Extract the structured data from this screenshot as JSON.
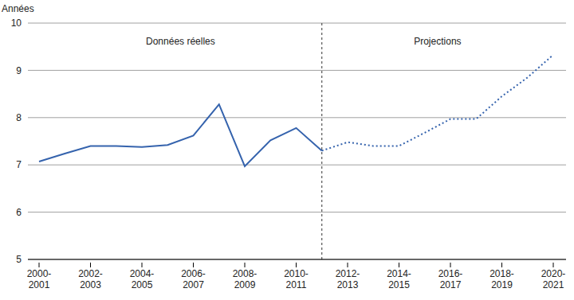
{
  "chart_data": {
    "type": "line",
    "ylabel": "Années",
    "categories": [
      "2000-2001",
      null,
      "2002-2003",
      null,
      "2004-2005",
      null,
      "2006-2007",
      null,
      "2008-2009",
      null,
      "2010-2011",
      null,
      "2012-2013",
      null,
      "2014-2015",
      null,
      "2016-2017",
      null,
      "2018-2019",
      null,
      "2020-2021"
    ],
    "series": [
      {
        "name": "Données réelles",
        "color": "#3563ad",
        "line_style": "solid",
        "values": [
          7.07,
          7.24,
          7.4,
          7.4,
          7.38,
          7.42,
          7.62,
          8.28,
          6.97,
          7.52,
          7.78,
          7.3,
          null,
          null,
          null,
          null,
          null,
          null,
          null,
          null,
          null
        ]
      },
      {
        "name": "Projections",
        "color": "#3563ad",
        "line_style": "dotted",
        "values": [
          null,
          null,
          null,
          null,
          null,
          null,
          null,
          null,
          null,
          null,
          null,
          7.3,
          7.48,
          7.4,
          7.4,
          7.68,
          7.97,
          7.97,
          8.45,
          8.85,
          9.33
        ]
      }
    ],
    "ylim": [
      5,
      10
    ],
    "yticks": [
      5,
      6,
      7,
      8,
      9,
      10
    ],
    "grid": true
  }
}
